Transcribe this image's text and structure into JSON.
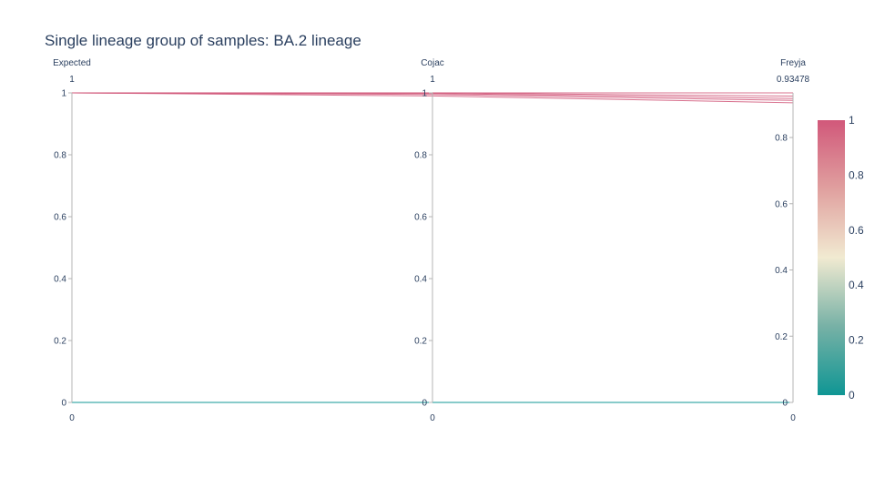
{
  "chart_data": {
    "type": "parcoords",
    "title": "Single lineage group of samples: BA.2 lineage",
    "dimensions": [
      {
        "label": "Expected",
        "range": [
          0,
          1
        ],
        "range_max_label": "1",
        "range_min_label": "0",
        "tickvals": [
          0,
          0.2,
          0.4,
          0.6,
          0.8,
          1
        ],
        "ticktext": [
          "0",
          "0.2",
          "0.4",
          "0.6",
          "0.8",
          "1"
        ]
      },
      {
        "label": "Cojac",
        "range": [
          0,
          1
        ],
        "range_max_label": "1",
        "range_min_label": "0",
        "tickvals": [
          0,
          0.2,
          0.4,
          0.6,
          0.8,
          1
        ],
        "ticktext": [
          "0",
          "0.2",
          "0.4",
          "0.6",
          "0.8",
          "1"
        ]
      },
      {
        "label": "Freyja",
        "range": [
          0,
          0.93478
        ],
        "range_max_label": "0.93478",
        "range_min_label": "0",
        "tickvals": [
          0,
          0.2,
          0.4,
          0.6,
          0.8
        ],
        "ticktext": [
          "0",
          "0.2",
          "0.4",
          "0.6",
          "0.8"
        ]
      }
    ],
    "lines": [
      {
        "values": [
          1,
          1,
          0.93478
        ],
        "color_value": 1
      },
      {
        "values": [
          1,
          1,
          0.925
        ],
        "color_value": 1
      },
      {
        "values": [
          1,
          0.998,
          0.918
        ],
        "color_value": 1
      },
      {
        "values": [
          1,
          0.995,
          0.912
        ],
        "color_value": 1
      },
      {
        "values": [
          1,
          0.99,
          0.905
        ],
        "color_value": 1
      },
      {
        "values": [
          0,
          0,
          0
        ],
        "color_value": 0
      },
      {
        "values": [
          0,
          0,
          0
        ],
        "color_value": 0
      },
      {
        "values": [
          0,
          0,
          0
        ],
        "color_value": 0
      }
    ],
    "colorscale": [
      {
        "stop": 0,
        "color": "#009B9E"
      },
      {
        "stop": 0.1667,
        "color": "#42B7B9"
      },
      {
        "stop": 0.3333,
        "color": "#A7D3D4"
      },
      {
        "stop": 0.5,
        "color": "#F1F1F1"
      },
      {
        "stop": 0.6667,
        "color": "#E4C1D9"
      },
      {
        "stop": 0.8333,
        "color": "#D691C1"
      },
      {
        "stop": 1,
        "color": "#C75DAB"
      }
    ],
    "colorscale_render": [
      {
        "stop": 0,
        "color": "#0f9694"
      },
      {
        "stop": 0.25,
        "color": "#77b1a6"
      },
      {
        "stop": 0.5,
        "color": "#f1ead1"
      },
      {
        "stop": 0.75,
        "color": "#e0a09f"
      },
      {
        "stop": 1,
        "color": "#d1587a"
      }
    ],
    "colorbar": {
      "range": [
        0,
        1
      ],
      "tickvals": [
        0,
        0.2,
        0.4,
        0.6,
        0.8,
        1
      ],
      "ticktext": [
        "0",
        "0.2",
        "0.4",
        "0.6",
        "0.8",
        "1"
      ]
    }
  }
}
